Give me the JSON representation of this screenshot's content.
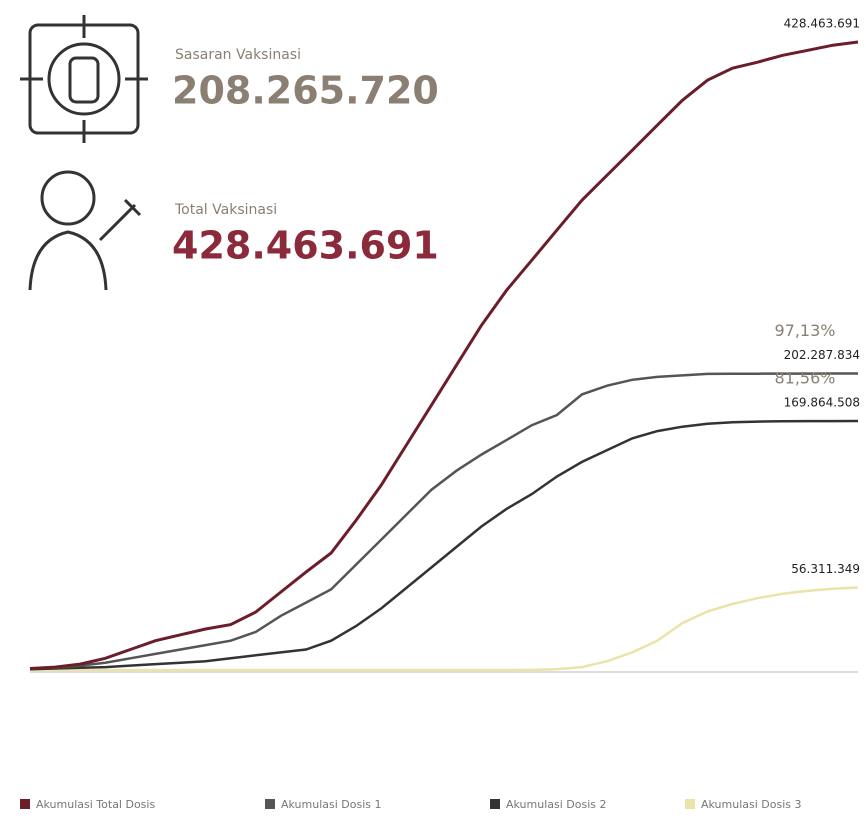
{
  "chart_data": {
    "type": "line",
    "stats": [
      {
        "label": "Sasaran Vaksinasi",
        "value": "208.265.720",
        "color": "#8a7f72"
      },
      {
        "label": "Total Vaksinasi",
        "value": "428.463.691",
        "color": "#8b2a3a"
      }
    ],
    "categories": [
      null,
      null,
      null,
      null,
      null,
      null,
      null,
      null,
      null,
      null,
      null,
      null,
      null,
      null,
      null,
      null,
      null,
      null,
      null,
      null,
      null,
      null,
      null,
      null,
      null,
      null,
      null,
      null,
      null,
      null,
      null,
      null,
      null,
      null
    ],
    "series": [
      {
        "name": "Akumulasi Total Dosis",
        "color": "#6b1d2a",
        "values": [
          1,
          2,
          4,
          8,
          14,
          20,
          24,
          28,
          31,
          39.6,
          53.2,
          66.8,
          79.8,
          102.3,
          126.2,
          153.5,
          180.7,
          208,
          235.3,
          259.2,
          279.6,
          300.1,
          320.5,
          337.6,
          354.6,
          371.7,
          388.7,
          402.4,
          410.6,
          414.7,
          419.4,
          422.8,
          426.3,
          428.463691
        ],
        "value_labels": [
          null,
          null,
          null,
          null,
          null,
          null,
          null,
          null,
          null,
          null,
          null,
          null,
          null,
          null,
          null,
          null,
          null,
          null,
          null,
          null,
          null,
          null,
          null,
          null,
          null,
          null,
          null,
          null,
          null,
          null,
          null,
          null,
          null,
          "428.463.691"
        ]
      },
      {
        "name": "Akumulasi Dosis 1",
        "color": "#555555",
        "values": [
          1,
          1.5,
          3,
          5,
          8,
          11,
          14,
          17,
          20,
          26,
          37,
          46,
          55,
          72,
          89,
          106,
          123,
          136,
          147,
          157,
          167,
          174,
          188,
          194,
          198,
          200,
          201,
          202,
          202.1,
          202.15,
          202.2,
          202.25,
          202.27,
          202.287834
        ],
        "value_labels": [
          null,
          null,
          null,
          null,
          null,
          null,
          null,
          null,
          null,
          null,
          null,
          null,
          null,
          null,
          null,
          null,
          null,
          null,
          null,
          null,
          null,
          null,
          null,
          null,
          null,
          null,
          null,
          null,
          null,
          null,
          null,
          null,
          null,
          "202.287.834"
        ]
      },
      {
        "name": "Akumulasi Dosis 2",
        "color": "#333333",
        "values": [
          0.5,
          1,
          1.5,
          2,
          3,
          4,
          5,
          6,
          8,
          10,
          12,
          14,
          20,
          30,
          42,
          56,
          70,
          84,
          98,
          110,
          120,
          132,
          142,
          150,
          158,
          163,
          166,
          168,
          169,
          169.5,
          169.7,
          169.8,
          169.85,
          169.864508
        ],
        "value_labels": [
          null,
          null,
          null,
          null,
          null,
          null,
          null,
          null,
          null,
          null,
          null,
          null,
          null,
          null,
          null,
          null,
          null,
          null,
          null,
          null,
          null,
          null,
          null,
          null,
          null,
          null,
          null,
          null,
          null,
          null,
          null,
          null,
          null,
          "169.864.508"
        ]
      },
      {
        "name": "Akumulasi Dosis 3",
        "color": "#ece3a8",
        "values": [
          0,
          0,
          0,
          0,
          0,
          0,
          0,
          0,
          0,
          0,
          0,
          0,
          0,
          0,
          0,
          0,
          0,
          0,
          0,
          0,
          0.1,
          0.5,
          2,
          6,
          12,
          20,
          32,
          40,
          45,
          49,
          52,
          54,
          55.5,
          56.311349
        ],
        "value_labels": [
          null,
          null,
          null,
          null,
          null,
          null,
          null,
          null,
          null,
          null,
          null,
          null,
          null,
          null,
          null,
          null,
          null,
          null,
          null,
          null,
          null,
          null,
          null,
          null,
          null,
          null,
          null,
          null,
          null,
          null,
          null,
          null,
          null,
          "56.311.349"
        ]
      }
    ],
    "annotations": [
      {
        "text": "97,13%",
        "series": 1
      },
      {
        "text": "81,56%",
        "series": 2
      }
    ]
  }
}
